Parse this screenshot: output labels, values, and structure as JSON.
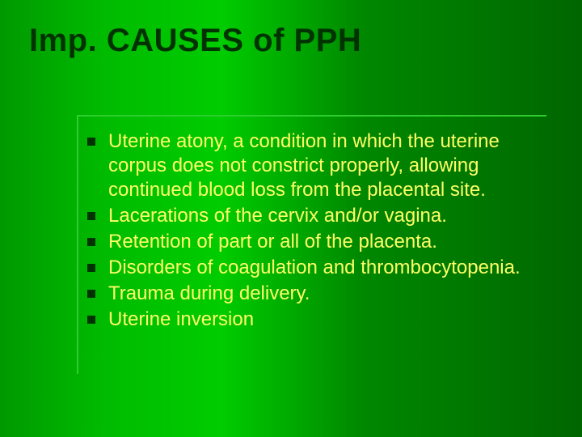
{
  "slide": {
    "title": "Imp. CAUSES of PPH",
    "bullets": [
      "Uterine atony, a condition in which the uterine corpus does not constrict properly, allowing continued blood loss from the placental site.",
      " Lacerations of the cervix and/or vagina.",
      " Retention of part or all of the placenta.",
      "Disorders of coagulation and thrombocytopenia.",
      "Trauma during delivery.",
      "Uterine inversion"
    ]
  },
  "style": {
    "title_color": "#003300",
    "title_fontsize": 40,
    "title_font": "Arial Black",
    "bullet_color": "#ffff66",
    "bullet_fontsize": 24,
    "bullet_marker_color": "#003300",
    "bullet_marker_size": 10,
    "background_gradient": [
      "#009900",
      "#00bb00",
      "#00cc00",
      "#008800",
      "#006600"
    ],
    "rule_color": "#2fcd2f",
    "slide_width": 720,
    "slide_height": 540
  }
}
